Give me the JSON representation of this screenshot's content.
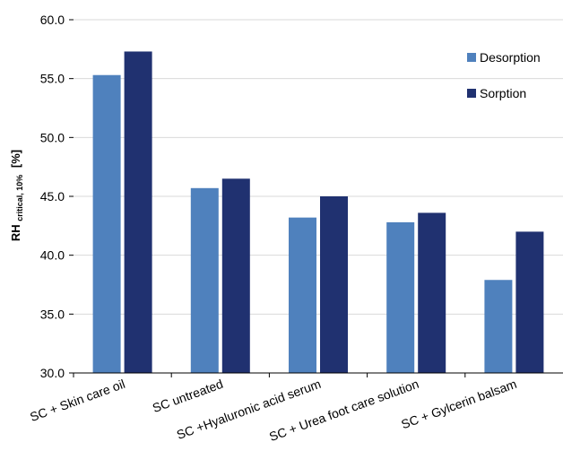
{
  "chart_data": {
    "type": "bar",
    "title": "",
    "xlabel": "",
    "ylabel": {
      "main": "RH",
      "subscript": "critical, 10%",
      "suffix": "[%]"
    },
    "ylim": [
      30,
      60
    ],
    "yticks": [
      "30.0",
      "35.0",
      "40.0",
      "45.0",
      "50.0",
      "55.0",
      "60.0"
    ],
    "grid": true,
    "legend_position": "top-right",
    "categories": [
      "SC + Skin care oil",
      "SC untreated",
      "SC +Hyaluronic acid serum",
      "SC + Urea foot care solution",
      "SC + Gylcerin balsam"
    ],
    "series": [
      {
        "name": "Desorption",
        "color": "#4F81BD",
        "values": [
          55.3,
          45.7,
          43.2,
          42.8,
          37.9
        ]
      },
      {
        "name": "Sorption",
        "color": "#203170",
        "values": [
          57.3,
          46.5,
          45.0,
          43.6,
          42.0
        ]
      }
    ]
  }
}
